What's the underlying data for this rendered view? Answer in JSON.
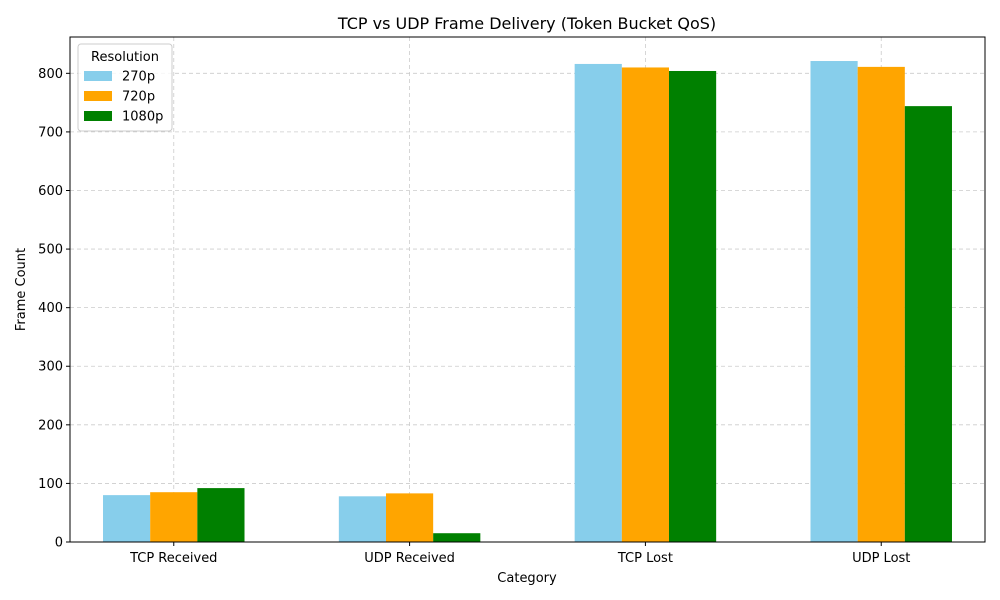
{
  "chart_data": {
    "type": "bar",
    "title": "TCP vs UDP Frame Delivery (Token Bucket QoS)",
    "xlabel": "Category",
    "ylabel": "Frame Count",
    "categories": [
      "TCP Received",
      "UDP Received",
      "TCP Lost",
      "UDP Lost"
    ],
    "series": [
      {
        "name": "270p",
        "color": "#87ceeb",
        "values": [
          80,
          78,
          816,
          821
        ]
      },
      {
        "name": "720p",
        "color": "#ffa500",
        "values": [
          85,
          83,
          810,
          811
        ]
      },
      {
        "name": "1080p",
        "color": "#008000",
        "values": [
          92,
          15,
          804,
          744
        ]
      }
    ],
    "ylim": [
      0,
      862
    ],
    "yticks": [
      0,
      100,
      200,
      300,
      400,
      500,
      600,
      700,
      800
    ],
    "grid": true,
    "legend": {
      "title": "Resolution",
      "placement": "top-left"
    }
  }
}
